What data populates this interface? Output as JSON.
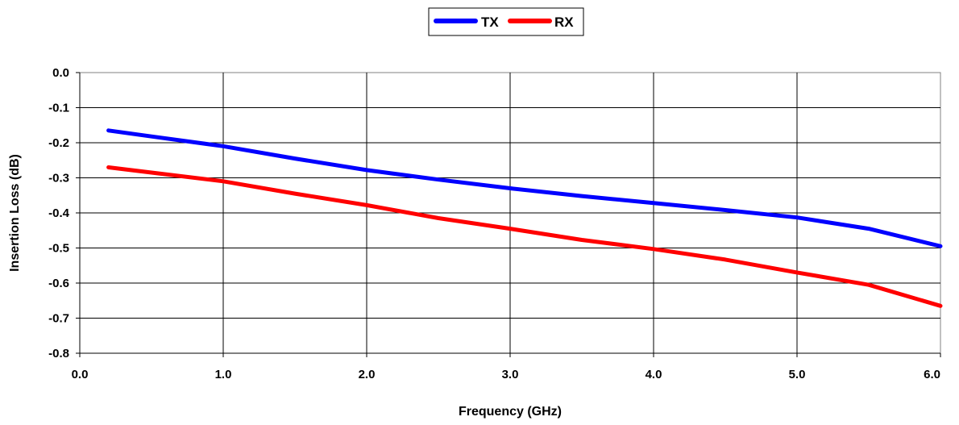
{
  "chart_data": {
    "type": "line",
    "title": "",
    "xlabel": "Frequency (GHz)",
    "ylabel": "Insertion Loss (dB)",
    "xlim": [
      0.0,
      6.0
    ],
    "ylim": [
      -0.8,
      0.0
    ],
    "x_ticks": [
      0,
      1,
      2,
      3,
      4,
      5,
      6
    ],
    "x_tick_labels": [
      "0.0",
      "1.0",
      "2.0",
      "3.0",
      "4.0",
      "5.0",
      "6.0"
    ],
    "y_ticks": [
      0,
      -0.1,
      -0.2,
      -0.3,
      -0.4,
      -0.5,
      -0.6,
      -0.7,
      -0.8
    ],
    "y_tick_labels": [
      "0.0",
      "-0.1",
      "-0.2",
      "-0.3",
      "-0.4",
      "-0.5",
      "-0.6",
      "-0.7",
      "-0.8"
    ],
    "grid": "vertical",
    "legend": "top-center",
    "series": [
      {
        "name": "TX",
        "color": "#0000ff",
        "x": [
          0.2,
          0.5,
          1.0,
          1.5,
          2.0,
          2.5,
          3.0,
          3.5,
          4.0,
          4.5,
          5.0,
          5.5,
          6.0
        ],
        "y": [
          -0.165,
          -0.182,
          -0.21,
          -0.245,
          -0.278,
          -0.305,
          -0.33,
          -0.352,
          -0.372,
          -0.392,
          -0.413,
          -0.445,
          -0.495
        ]
      },
      {
        "name": "RX",
        "color": "#ff0000",
        "x": [
          0.2,
          0.5,
          1.0,
          1.5,
          2.0,
          2.5,
          3.0,
          3.5,
          4.0,
          4.5,
          5.0,
          5.5,
          6.0
        ],
        "y": [
          -0.27,
          -0.285,
          -0.31,
          -0.345,
          -0.378,
          -0.415,
          -0.445,
          -0.477,
          -0.503,
          -0.533,
          -0.57,
          -0.605,
          -0.665
        ]
      }
    ]
  }
}
